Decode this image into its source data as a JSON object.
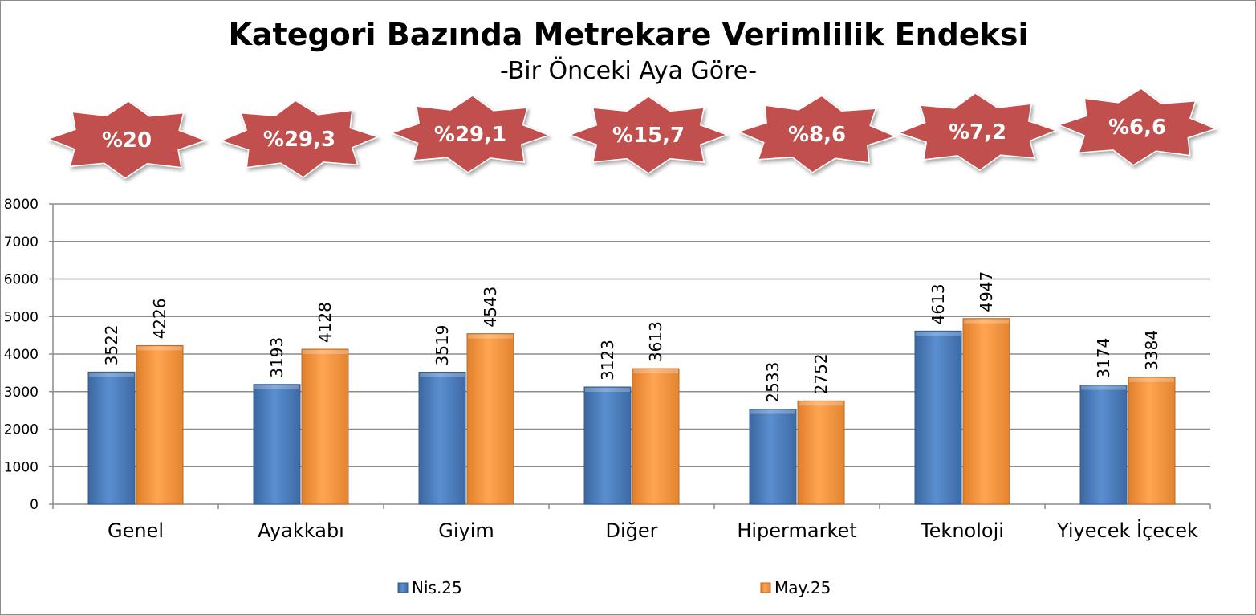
{
  "chart_data": {
    "type": "bar",
    "title": "Kategori Bazında Metrekare Verimlilik Endeksi",
    "subtitle": "-Bir Önceki Aya Göre-",
    "categories": [
      "Genel",
      "Ayakkabı",
      "Giyim",
      "Diğer",
      "Hipermarket",
      "Teknoloji",
      "Yiyecek İçecek"
    ],
    "series": [
      {
        "name": "Nis.25",
        "values": [
          3522,
          3193,
          3519,
          3123,
          2533,
          4613,
          3174
        ],
        "color": "#4f81bd"
      },
      {
        "name": "May.25",
        "values": [
          4226,
          4128,
          4543,
          3613,
          2752,
          4947,
          3384
        ],
        "color": "#f79646"
      }
    ],
    "change_badges": [
      "%20",
      "%29,3",
      "%29,1",
      "%15,7",
      "%8,6",
      "%7,2",
      "%6,6"
    ],
    "badge_color": "#c0504d",
    "ylim": [
      0,
      8000
    ],
    "yticks": [
      0,
      1000,
      2000,
      3000,
      4000,
      5000,
      6000,
      7000,
      8000
    ],
    "xlabel": "",
    "ylabel": "",
    "grid": true,
    "legend_position": "bottom"
  }
}
